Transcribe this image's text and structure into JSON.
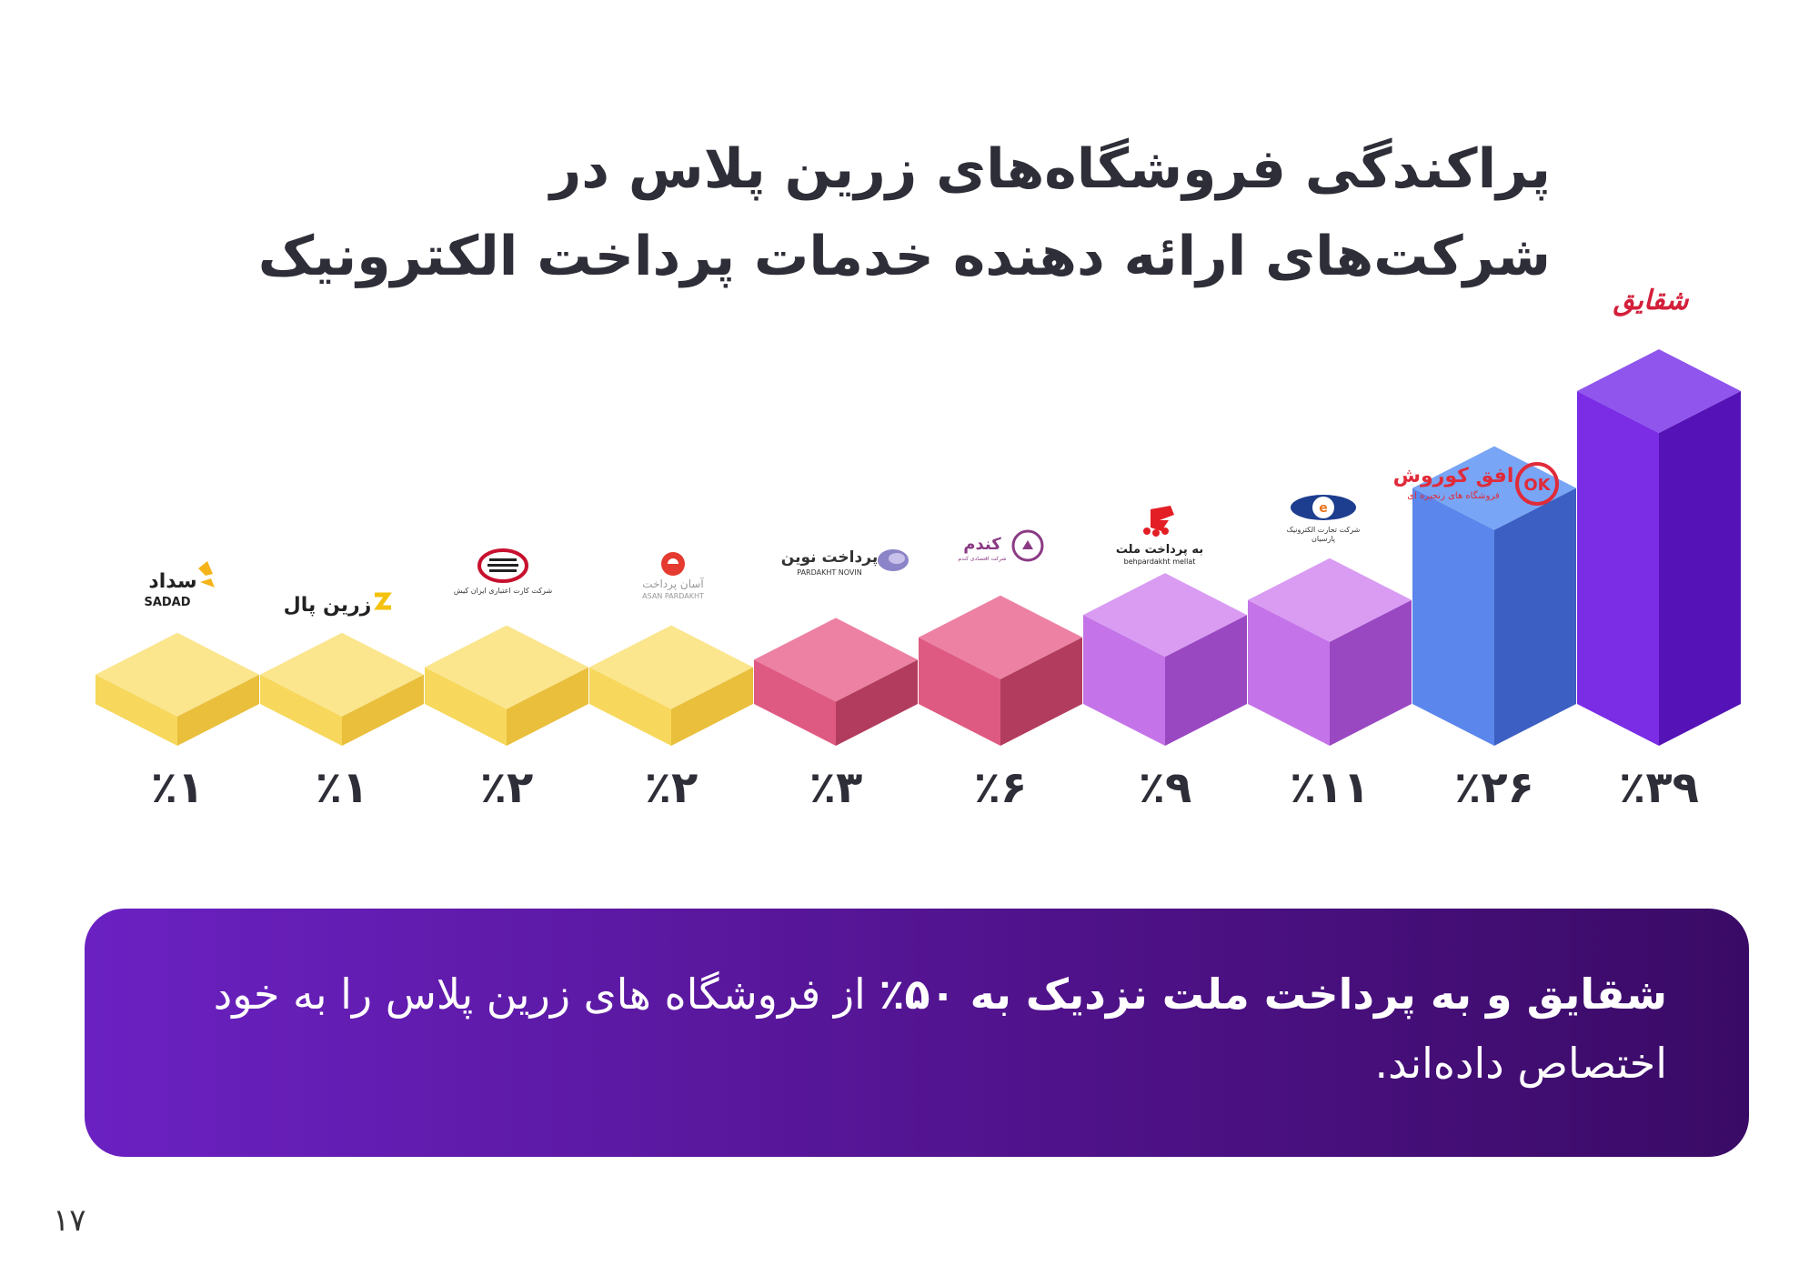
{
  "page": {
    "title_line1": "پراکندگی فروشگاه‌های زرین پلاس در",
    "title_line2": "شرکت‌های ارائه دهنده خدمات پرداخت الکترونیک",
    "page_number": "۱۷"
  },
  "callout": {
    "bold_text": "شقایق و به پرداخت ملت نزدیک به ۵۰٪",
    "rest_text": " از فروشگاه های زرین پلاس را به خود اختصاص داده‌اند."
  },
  "chart_data": {
    "type": "bar",
    "categories": [
      "سداد SADAD",
      "زرین پال",
      "شرکت کارت اعتباری ایران کیش",
      "آسان پرداخت ASAN PARDAKHT",
      "پرداخت نوین PARDAKHT NOVIN",
      "کندم",
      "به پرداخت ملت behpardakht mellat",
      "شرکت تجارت الکترونیک پارسیان",
      "افق کوروش فروشگاه های زنجیره ای",
      "شقایق"
    ],
    "values": [
      1,
      1,
      2,
      2,
      3,
      6,
      9,
      11,
      26,
      39
    ],
    "value_labels": [
      "٪۱",
      "٪۱",
      "٪۲",
      "٪۲",
      "٪۳",
      "٪۶",
      "٪۹",
      "٪۱۱",
      "٪۲۶",
      "٪۳۹"
    ],
    "ylim": [
      0,
      39
    ],
    "bar_style": "isometric-cube",
    "colors": {
      "yellow_top": "#fbe58d",
      "yellow_left": "#f7d85c",
      "yellow_right": "#e9bf3c",
      "pink_top": "#ec81a4",
      "pink_left": "#df5a82",
      "pink_right": "#b23c5d",
      "lilac_top": "#d99cf2",
      "lilac_left": "#c474e8",
      "lilac_right": "#9a48c2",
      "blue_top": "#78a5f5",
      "blue_left": "#5b87ec",
      "blue_right": "#3b5fc2",
      "violet_top": "#8f55ec",
      "violet_left": "#7b2de6",
      "violet_right": "#5512b6"
    },
    "color_groups": [
      "yellow",
      "yellow",
      "yellow",
      "yellow",
      "pink",
      "pink",
      "lilac",
      "lilac",
      "blue",
      "violet"
    ],
    "grid": false,
    "legend": "none"
  },
  "brand_marks": {
    "sadad": [
      "سداد",
      "SADAD"
    ],
    "zarinpal": "زرین پال",
    "irankish": "شرکت کارت اعتباری ایران کیش",
    "asanpardakht": [
      "آسان پرداخت",
      "ASAN PARDAKHT"
    ],
    "pardakhtnovin": [
      "پرداخت نوین",
      "PARDAKHT NOVIN"
    ],
    "kandom": [
      "کندم",
      "شرکت اقتصادی کندم"
    ],
    "behpardakht": [
      "به پرداخت ملت",
      "behpardakht mellat"
    ],
    "parsian": [
      "شرکت تجارت الکترونیک",
      "پارسیان"
    ],
    "ofogh": [
      "افق کوروش",
      "فروشگاه های زنجیره ای"
    ],
    "shaghayegh": "شقایق"
  }
}
